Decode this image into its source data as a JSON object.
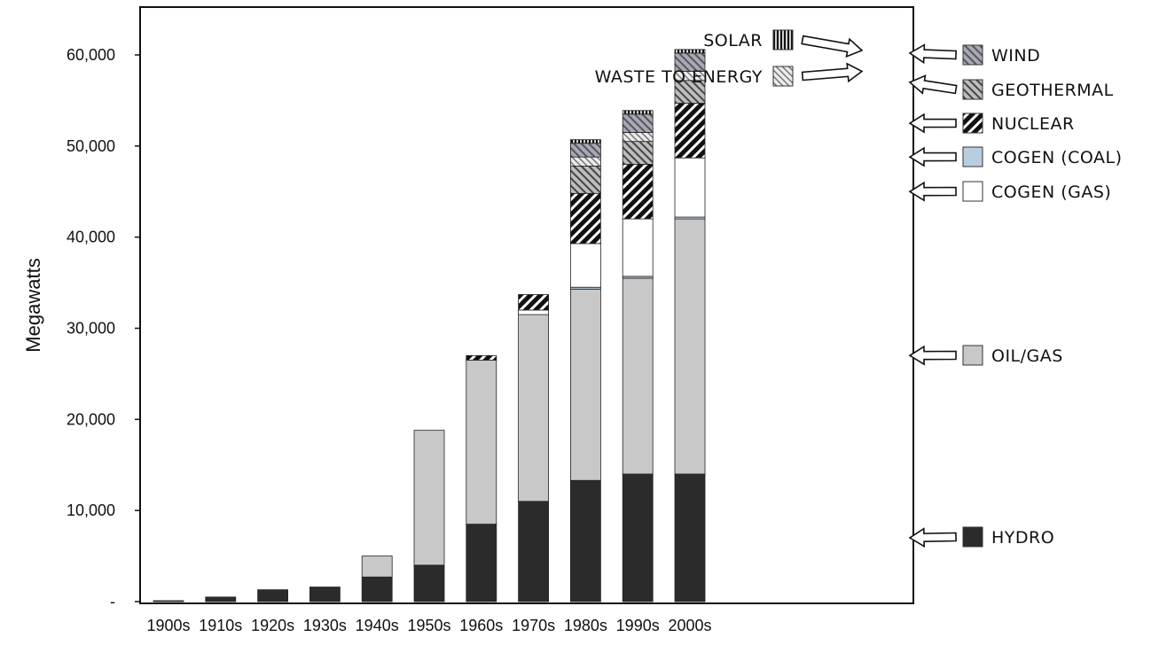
{
  "chart_data": {
    "type": "bar",
    "stacked": true,
    "title": "",
    "xlabel": "",
    "ylabel": "Megawatts",
    "ylim": [
      0,
      65000
    ],
    "yticks": [
      0,
      10000,
      20000,
      30000,
      40000,
      50000,
      60000
    ],
    "ytick_labels": [
      "-",
      "10,000",
      "20,000",
      "30,000",
      "40,000",
      "50,000",
      "60,000"
    ],
    "categories": [
      "1900s",
      "1910s",
      "1920s",
      "1930s",
      "1940s",
      "1950s",
      "1960s",
      "1970s",
      "1980s",
      "1990s",
      "2000s"
    ],
    "grid": false,
    "legend_placement": "right",
    "series": [
      {
        "name": "HYDRO",
        "color": "#2b2b2b",
        "pattern": "solid",
        "values": [
          100,
          500,
          1300,
          1600,
          2700,
          4000,
          8500,
          11000,
          13300,
          14000,
          14000
        ]
      },
      {
        "name": "OIL/GAS",
        "color": "#c8c8c8",
        "pattern": "solid",
        "values": [
          0,
          0,
          0,
          0,
          2300,
          14800,
          18000,
          20500,
          21000,
          21500,
          28000
        ]
      },
      {
        "name": "COGEN (COAL)",
        "color": "#b9cde0",
        "pattern": "solid",
        "values": [
          0,
          0,
          0,
          0,
          0,
          0,
          0,
          0,
          200,
          200,
          200
        ]
      },
      {
        "name": "COGEN (GAS)",
        "color": "#ffffff",
        "pattern": "solid",
        "values": [
          0,
          0,
          0,
          0,
          0,
          0,
          0,
          500,
          4800,
          6300,
          6500
        ]
      },
      {
        "name": "NUCLEAR",
        "color": "#1a1a1a",
        "pattern": "dense-diagonal",
        "values": [
          0,
          0,
          0,
          0,
          0,
          0,
          500,
          1700,
          5500,
          6000,
          6000
        ]
      },
      {
        "name": "GEOTHERMAL",
        "color": "#555555",
        "pattern": "diagonal",
        "values": [
          0,
          0,
          0,
          0,
          0,
          0,
          0,
          0,
          3000,
          2500,
          2500
        ]
      },
      {
        "name": "WASTE TO ENERGY",
        "color": "#999999",
        "pattern": "light-diagonal",
        "values": [
          0,
          0,
          0,
          0,
          0,
          0,
          0,
          0,
          1000,
          1000,
          1000
        ]
      },
      {
        "name": "WIND",
        "color": "#6f6f6f",
        "pattern": "cross-diagonal",
        "values": [
          0,
          0,
          0,
          0,
          0,
          0,
          0,
          0,
          1500,
          2000,
          2000
        ]
      },
      {
        "name": "SOLAR",
        "color": "#111111",
        "pattern": "vertical",
        "values": [
          0,
          0,
          0,
          0,
          0,
          0,
          0,
          0,
          400,
          400,
          400
        ]
      }
    ],
    "legend_right": [
      {
        "key": "WIND",
        "label": "WIND"
      },
      {
        "key": "GEOTHERMAL",
        "label": "GEOTHERMAL"
      },
      {
        "key": "NUCLEAR",
        "label": "NUCLEAR"
      },
      {
        "key": "COGEN (COAL)",
        "label": "COGEN (COAL)"
      },
      {
        "key": "COGEN (GAS)",
        "label": "COGEN (GAS)"
      },
      {
        "key": "OIL/GAS",
        "label": "OIL/GAS"
      },
      {
        "key": "HYDRO",
        "label": "HYDRO"
      }
    ],
    "legend_top": [
      {
        "key": "SOLAR",
        "label": "SOLAR"
      },
      {
        "key": "WASTE TO ENERGY",
        "label": "WASTE TO ENERGY"
      }
    ]
  }
}
